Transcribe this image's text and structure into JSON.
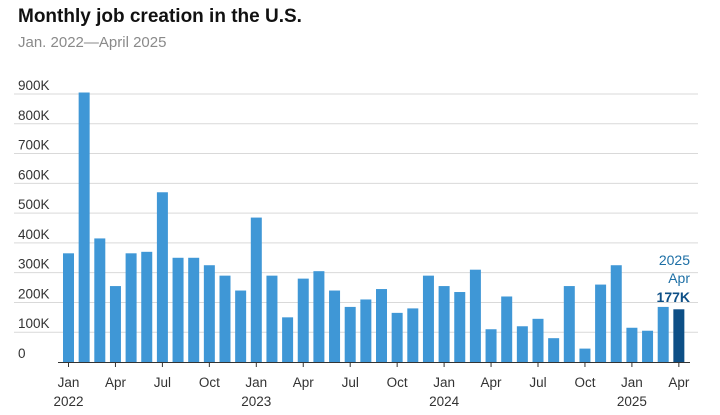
{
  "header": {
    "title": "Monthly job creation in the U.S.",
    "subtitle": "Jan. 2022—April 2025"
  },
  "chart_data": {
    "type": "bar",
    "title": "Monthly job creation in the U.S.",
    "subtitle": "Jan. 2022—April 2025",
    "xlabel": "",
    "ylabel": "",
    "ylim": [
      0,
      900
    ],
    "units": "thousands of jobs",
    "y_ticks": [
      {
        "value": 0,
        "label": "0"
      },
      {
        "value": 100,
        "label": "100K"
      },
      {
        "value": 200,
        "label": "200K"
      },
      {
        "value": 300,
        "label": "300K"
      },
      {
        "value": 400,
        "label": "400K"
      },
      {
        "value": 500,
        "label": "500K"
      },
      {
        "value": 600,
        "label": "600K"
      },
      {
        "value": 700,
        "label": "700K"
      },
      {
        "value": 800,
        "label": "800K"
      },
      {
        "value": 900,
        "label": "900K"
      }
    ],
    "grid": true,
    "categories": [
      "Jan 2022",
      "Feb 2022",
      "Mar 2022",
      "Apr 2022",
      "May 2022",
      "Jun 2022",
      "Jul 2022",
      "Aug 2022",
      "Sep 2022",
      "Oct 2022",
      "Nov 2022",
      "Dec 2022",
      "Jan 2023",
      "Feb 2023",
      "Mar 2023",
      "Apr 2023",
      "May 2023",
      "Jun 2023",
      "Jul 2023",
      "Aug 2023",
      "Sep 2023",
      "Oct 2023",
      "Nov 2023",
      "Dec 2023",
      "Jan 2024",
      "Feb 2024",
      "Mar 2024",
      "Apr 2024",
      "May 2024",
      "Jun 2024",
      "Jul 2024",
      "Aug 2024",
      "Sep 2024",
      "Oct 2024",
      "Nov 2024",
      "Dec 2024",
      "Jan 2025",
      "Feb 2025",
      "Mar 2025",
      "Apr 2025"
    ],
    "values": [
      365,
      905,
      415,
      255,
      365,
      370,
      570,
      350,
      350,
      325,
      290,
      240,
      485,
      290,
      150,
      280,
      305,
      240,
      185,
      210,
      245,
      165,
      180,
      290,
      255,
      235,
      310,
      110,
      220,
      120,
      145,
      80,
      255,
      45,
      260,
      325,
      115,
      105,
      185,
      177
    ],
    "x_tick_labels": [
      {
        "index": 0,
        "month": "Jan",
        "year": "2022"
      },
      {
        "index": 3,
        "month": "Apr",
        "year": ""
      },
      {
        "index": 6,
        "month": "Jul",
        "year": ""
      },
      {
        "index": 9,
        "month": "Oct",
        "year": ""
      },
      {
        "index": 12,
        "month": "Jan",
        "year": "2023"
      },
      {
        "index": 15,
        "month": "Apr",
        "year": ""
      },
      {
        "index": 18,
        "month": "Jul",
        "year": ""
      },
      {
        "index": 21,
        "month": "Oct",
        "year": ""
      },
      {
        "index": 24,
        "month": "Jan",
        "year": "2024"
      },
      {
        "index": 27,
        "month": "Apr",
        "year": ""
      },
      {
        "index": 30,
        "month": "Jul",
        "year": ""
      },
      {
        "index": 33,
        "month": "Oct",
        "year": ""
      },
      {
        "index": 36,
        "month": "Jan",
        "year": "2025"
      },
      {
        "index": 39,
        "month": "Apr",
        "year": ""
      }
    ],
    "highlight_index": 39,
    "annotation": {
      "line1": "2025",
      "line2": "Apr",
      "value_label": "177K"
    },
    "colors": {
      "bar": "#3f97d6",
      "highlight": "#0d4f86",
      "grid": "#d9d9d9",
      "baseline": "#333333"
    }
  }
}
